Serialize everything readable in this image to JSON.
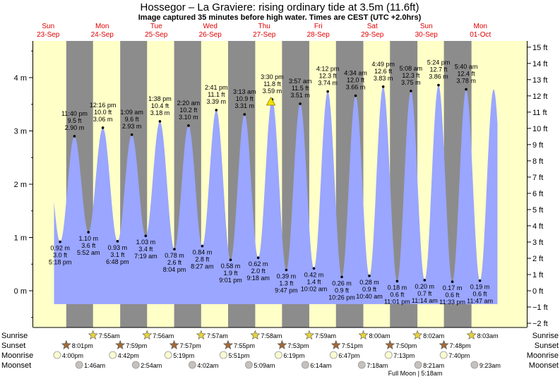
{
  "title": "Hossegor – La Graviere: rising  ordinary tide at 3.5m (11.6ft)",
  "subtitle": "Image captured 35 minutes before high water. Times are CEST (UTC +2.0hrs)",
  "days": [
    {
      "dow": "Sun",
      "date": "23-Sep"
    },
    {
      "dow": "Mon",
      "date": "24-Sep"
    },
    {
      "dow": "Tue",
      "date": "25-Sep"
    },
    {
      "dow": "Wed",
      "date": "26-Sep"
    },
    {
      "dow": "Thu",
      "date": "27-Sep"
    },
    {
      "dow": "Fri",
      "date": "28-Sep"
    },
    {
      "dow": "Sat",
      "date": "29-Sep"
    },
    {
      "dow": "Sun",
      "date": "30-Sep"
    },
    {
      "dow": "Mon",
      "date": "01-Oct"
    }
  ],
  "colors": {
    "day_background": "#ffffc8",
    "night_band": "#8c8c8c",
    "tide_fill": "#9aa6ff",
    "day_label": "#e00000",
    "sunrise_star": "#e8d23a",
    "sunset_star": "#a06a3a",
    "moonrise_disc": "#fbfbd2",
    "moonset_disc": "#c6c1bc"
  },
  "row_labels": {
    "sunrise": "Sunrise",
    "sunset": "Sunset",
    "moonrise": "Moonrise",
    "moonset": "Moonset"
  },
  "icons": {
    "sunrise": "star-icon",
    "sunset": "star-icon",
    "moonrise": "moon-disc-icon",
    "moonset": "moon-disc-icon",
    "current": "triangle-marker-icon"
  },
  "sunrise": [
    "7:55am",
    "7:56am",
    "7:57am",
    "7:58am",
    "7:59am",
    "8:00am",
    "8:02am",
    "8:03am"
  ],
  "sunset": [
    "8:01pm",
    "7:59pm",
    "7:57pm",
    "7:55pm",
    "7:53pm",
    "7:51pm",
    "7:50pm",
    "7:48pm"
  ],
  "moonrise": [
    "4:00pm",
    "4:42pm",
    "5:19pm",
    "5:51pm",
    "6:19pm",
    "6:47pm",
    "7:13pm",
    "7:40pm"
  ],
  "moonset": [
    "1:46am",
    "2:54am",
    "4:02am",
    "5:09am",
    "6:14am",
    "7:18am",
    "8:21am",
    "9:23am"
  ],
  "full_moon": "Full Moon | 5:18am",
  "chart_data": {
    "type": "area",
    "x_unit": "hours since 2018-09-23 00:00 CEST",
    "y_unit": "m",
    "ylim_m": [
      -0.65,
      4.75
    ],
    "ylim_ft": [
      -2,
      15
    ],
    "y_ticks_m": [
      0,
      1,
      2,
      3,
      4
    ],
    "y_tick_labels_m": [
      "0 m",
      "1 m",
      "2 m",
      "3 m",
      "4 m"
    ],
    "y_ticks_ft": [
      -2,
      -1,
      0,
      1,
      2,
      3,
      4,
      5,
      6,
      7,
      8,
      9,
      10,
      11,
      12,
      13,
      14,
      15
    ],
    "y_tick_labels_ft": [
      "−2 ft",
      "−1 ft",
      "0 ft",
      "1 ft",
      "2 ft",
      "3 ft",
      "4 ft",
      "5 ft",
      "6 ft",
      "7 ft",
      "8 ft",
      "9 ft",
      "10 ft",
      "11 ft",
      "12 ft",
      "13 ft",
      "14 ft",
      "15 ft"
    ],
    "highs": [
      {
        "t": 23.67,
        "time": "11:40 pm",
        "ft": "9.5 ft",
        "m": 2.9,
        "m_label": "2.90 m"
      },
      {
        "t": 36.27,
        "time": "12:16 pm",
        "ft": "10.0 ft",
        "m": 3.06,
        "m_label": "3.06 m"
      },
      {
        "t": 49.15,
        "time": "1:09 am",
        "ft": "9.6 ft",
        "m": 2.93,
        "m_label": "2.93 m"
      },
      {
        "t": 61.63,
        "time": "1:38 pm",
        "ft": "10.4 ft",
        "m": 3.18,
        "m_label": "3.18 m"
      },
      {
        "t": 74.33,
        "time": "2:20 am",
        "ft": "10.2 ft",
        "m": 3.1,
        "m_label": "3.10 m"
      },
      {
        "t": 86.68,
        "time": "2:41 pm",
        "ft": "11.1 ft",
        "m": 3.39,
        "m_label": "3.39 m"
      },
      {
        "t": 99.22,
        "time": "3:13 am",
        "ft": "10.9 ft",
        "m": 3.31,
        "m_label": "3.31 m"
      },
      {
        "t": 111.5,
        "time": "3:30 pm",
        "ft": "11.8 ft",
        "m": 3.59,
        "m_label": "3.59 m"
      },
      {
        "t": 123.95,
        "time": "3:57 am",
        "ft": "11.5 ft",
        "m": 3.51,
        "m_label": "3.51 m"
      },
      {
        "t": 136.2,
        "time": "4:12 pm",
        "ft": "12.3 ft",
        "m": 3.74,
        "m_label": "3.74 m"
      },
      {
        "t": 148.57,
        "time": "4:34 am",
        "ft": "12.0 ft",
        "m": 3.66,
        "m_label": "3.66 m"
      },
      {
        "t": 160.82,
        "time": "4:49 pm",
        "ft": "12.6 ft",
        "m": 3.83,
        "m_label": "3.83 m"
      },
      {
        "t": 173.13,
        "time": "5:08 am",
        "ft": "12.3 ft",
        "m": 3.75,
        "m_label": "3.75 m"
      },
      {
        "t": 185.4,
        "time": "5:24 pm",
        "ft": "12.7 ft",
        "m": 3.86,
        "m_label": "3.86 m"
      },
      {
        "t": 197.67,
        "time": "5:40 am",
        "ft": "12.4 ft",
        "m": 3.78,
        "m_label": "3.78 m"
      }
    ],
    "lows": [
      {
        "t": 17.3,
        "time": "5:18 pm",
        "ft": "3.0 ft",
        "m": 0.92,
        "m_label": "0.92 m"
      },
      {
        "t": 29.87,
        "time": "5:52 am",
        "ft": "3.6 ft",
        "m": 1.1,
        "m_label": "1.10 m"
      },
      {
        "t": 42.8,
        "time": "6:48 pm",
        "ft": "3.1 ft",
        "m": 0.93,
        "m_label": "0.93 m"
      },
      {
        "t": 55.32,
        "time": "7:19 am",
        "ft": "3.4 ft",
        "m": 1.03,
        "m_label": "1.03 m"
      },
      {
        "t": 68.07,
        "time": "8:04 pm",
        "ft": "2.6 ft",
        "m": 0.78,
        "m_label": "0.78 m"
      },
      {
        "t": 80.45,
        "time": "8:27 am",
        "ft": "2.8 ft",
        "m": 0.84,
        "m_label": "0.84 m"
      },
      {
        "t": 93.02,
        "time": "9:01 pm",
        "ft": "1.9 ft",
        "m": 0.58,
        "m_label": "0.58 m"
      },
      {
        "t": 105.3,
        "time": "9:18 am",
        "ft": "2.0 ft",
        "m": 0.62,
        "m_label": "0.62 m"
      },
      {
        "t": 117.78,
        "time": "9:47 pm",
        "ft": "1.3 ft",
        "m": 0.39,
        "m_label": "0.39 m"
      },
      {
        "t": 130.03,
        "time": "10:02 am",
        "ft": "1.4 ft",
        "m": 0.42,
        "m_label": "0.42 m"
      },
      {
        "t": 142.43,
        "time": "10:26 pm",
        "ft": "0.9 ft",
        "m": 0.26,
        "m_label": "0.26 m"
      },
      {
        "t": 154.67,
        "time": "10:40 am",
        "ft": "0.9 ft",
        "m": 0.28,
        "m_label": "0.28 m"
      },
      {
        "t": 167.02,
        "time": "11:01 pm",
        "ft": "0.6 ft",
        "m": 0.18,
        "m_label": "0.18 m"
      },
      {
        "t": 179.23,
        "time": "11:14 am",
        "ft": "0.7 ft",
        "m": 0.2,
        "m_label": "0.20 m"
      },
      {
        "t": 191.55,
        "time": "11:33 pm",
        "ft": "0.6 ft",
        "m": 0.17,
        "m_label": "0.17 m"
      },
      {
        "t": 203.78,
        "time": "11:47 am",
        "ft": "0.6 ft",
        "m": 0.19,
        "m_label": "0.19 m"
      }
    ],
    "current": {
      "t": 110.92,
      "m": 3.55
    },
    "night_starts": [
      20.02,
      43.98,
      67.95,
      91.92,
      115.88,
      139.85,
      163.83,
      187.8
    ],
    "night_ends": [
      31.92,
      55.93,
      79.95,
      103.97,
      127.98,
      152.0,
      176.03,
      200.05
    ]
  }
}
